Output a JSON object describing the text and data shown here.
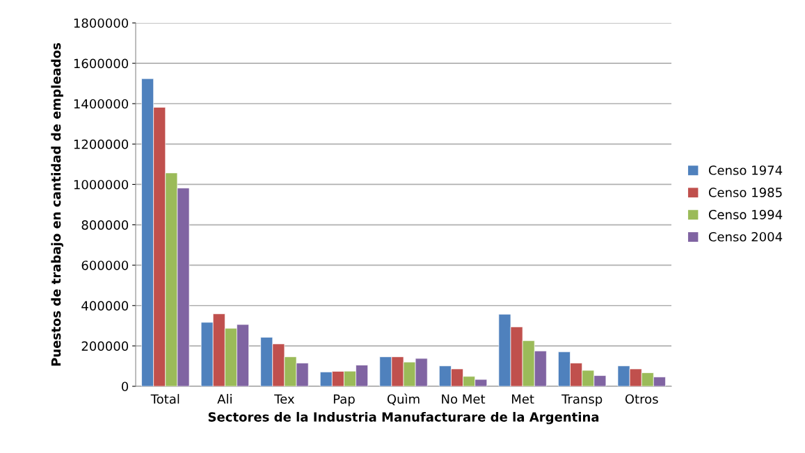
{
  "chart_data": {
    "type": "bar",
    "xlabel": "Sectores de la Industria Manufacturare de la Argentina",
    "ylabel": "Puestos de trabajo en cantidad de empleados",
    "categories": [
      "Total",
      "Ali",
      "Tex",
      "Pap",
      "Quìm",
      "No Met",
      "Met",
      "Transp",
      "Otros"
    ],
    "series": [
      {
        "name": "Censo 1974",
        "color": "#4f81bd",
        "values": [
          1524000,
          317000,
          243000,
          71000,
          146000,
          101000,
          357000,
          171000,
          101000
        ]
      },
      {
        "name": "Censo 1985",
        "color": "#c0504d",
        "values": [
          1382000,
          359000,
          210000,
          74000,
          146000,
          86000,
          294000,
          115000,
          86000
        ]
      },
      {
        "name": "Censo 1994",
        "color": "#9bbb59",
        "values": [
          1057000,
          287000,
          146000,
          75000,
          120000,
          49000,
          226000,
          79000,
          67000
        ]
      },
      {
        "name": "Censo 2004",
        "color": "#8064a2",
        "values": [
          982000,
          306000,
          115000,
          105000,
          138000,
          34000,
          175000,
          53000,
          46000
        ]
      }
    ],
    "ylim": [
      0,
      1800000
    ],
    "yticks": [
      0,
      200000,
      400000,
      600000,
      800000,
      1000000,
      1200000,
      1400000,
      1600000,
      1800000
    ],
    "grid": "y",
    "legend": "right"
  }
}
